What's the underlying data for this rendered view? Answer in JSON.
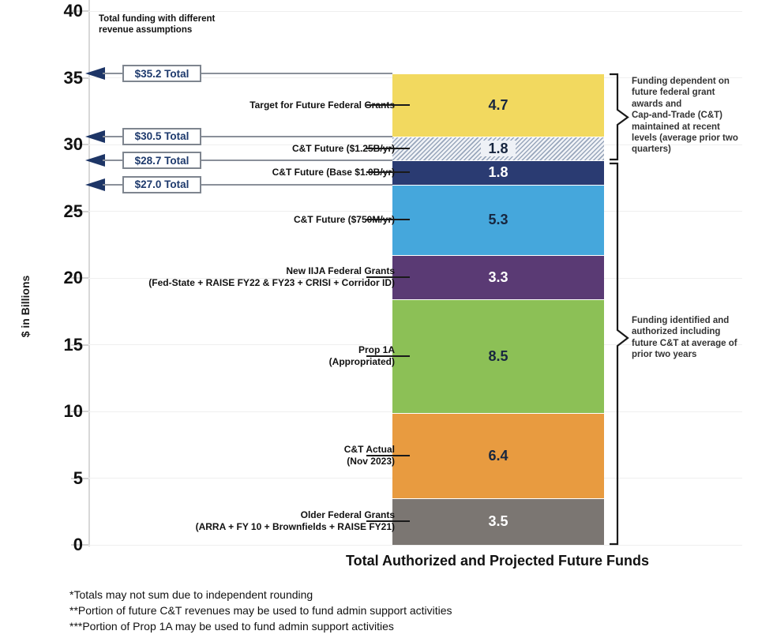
{
  "chart_note": "Total funding with different revenue assumptions",
  "annotations": {
    "dependent": "Funding dependent on\nfuture federal grant\nawards and\nCap-and-Trade (C&T)\nmaintained at recent\nlevels (average prior two\nquarters)",
    "identified": "Funding identified and\nauthorized including\nfuture C&T at average of\nprior two years"
  },
  "footnotes": [
    "*Totals may not sum due to independent rounding",
    "**Portion of future C&T revenues may be used to fund admin support activities",
    "***Portion of  Prop 1A may be used to fund admin support activities"
  ],
  "chart_data": {
    "type": "bar",
    "stacked": true,
    "title": "",
    "xlabel": "Total Authorized and Projected Future Funds",
    "ylabel": "$ in Billions",
    "ylim": [
      0,
      40
    ],
    "grid": true,
    "y_ticks": [
      0,
      5,
      10,
      15,
      20,
      25,
      30,
      35,
      40
    ],
    "categories": [
      "Total Authorized and Projected Future Funds"
    ],
    "segments": [
      {
        "label": "Older Federal Grants",
        "sublabel": "(ARRA + FY 10 + Brownfields + RAISE FY21)",
        "value": 3.5,
        "color": "#7b7672",
        "text_color": "#ffffff",
        "pattern": false
      },
      {
        "label": "C&T Actual",
        "sublabel": "(Nov 2023)",
        "value": 6.4,
        "color": "#e89b40",
        "text_color": "#17263f",
        "pattern": false
      },
      {
        "label": "Prop 1A",
        "sublabel": "(Appropriated)",
        "value": 8.5,
        "color": "#8cc056",
        "text_color": "#17263f",
        "pattern": false
      },
      {
        "label": "New IIJA Federal Grants",
        "sublabel": "(Fed-State + RAISE FY22 & FY23 + CRISI + Corridor ID)",
        "value": 3.3,
        "color": "#5a3a74",
        "text_color": "#ffffff",
        "pattern": false
      },
      {
        "label": "C&T Future ($750M/yr)",
        "sublabel": "",
        "value": 5.3,
        "color": "#45a7dc",
        "text_color": "#17263f",
        "pattern": false
      },
      {
        "label": "C&T Future (Base $1.0B/yr)",
        "sublabel": "",
        "value": 1.8,
        "color": "#2a3b72",
        "text_color": "#ffffff",
        "pattern": false
      },
      {
        "label": "C&T Future ($1.25B/yr)",
        "sublabel": "",
        "value": 1.8,
        "color": "#f1f3f7",
        "text_color": "#17263f",
        "pattern": true
      },
      {
        "label": "Target for Future Federal Grants",
        "sublabel": "",
        "value": 4.7,
        "color": "#f2d95f",
        "text_color": "#17263f",
        "pattern": false
      }
    ],
    "totals": [
      {
        "label": "$35.2 Total",
        "segments_included": 8
      },
      {
        "label": "$30.5 Total",
        "segments_included": 7
      },
      {
        "label": "$28.7 Total",
        "segments_included": 6
      },
      {
        "label": "$27.0 Total",
        "segments_included": 5
      }
    ],
    "colors": {
      "arrowhead": "#1d3566",
      "callout_line": "#8a909a",
      "callout_box_border": "#7e858f",
      "callout_text": "#1e3a6d",
      "leader_line": "#1a1a1a",
      "gridline": "#efefef"
    }
  }
}
